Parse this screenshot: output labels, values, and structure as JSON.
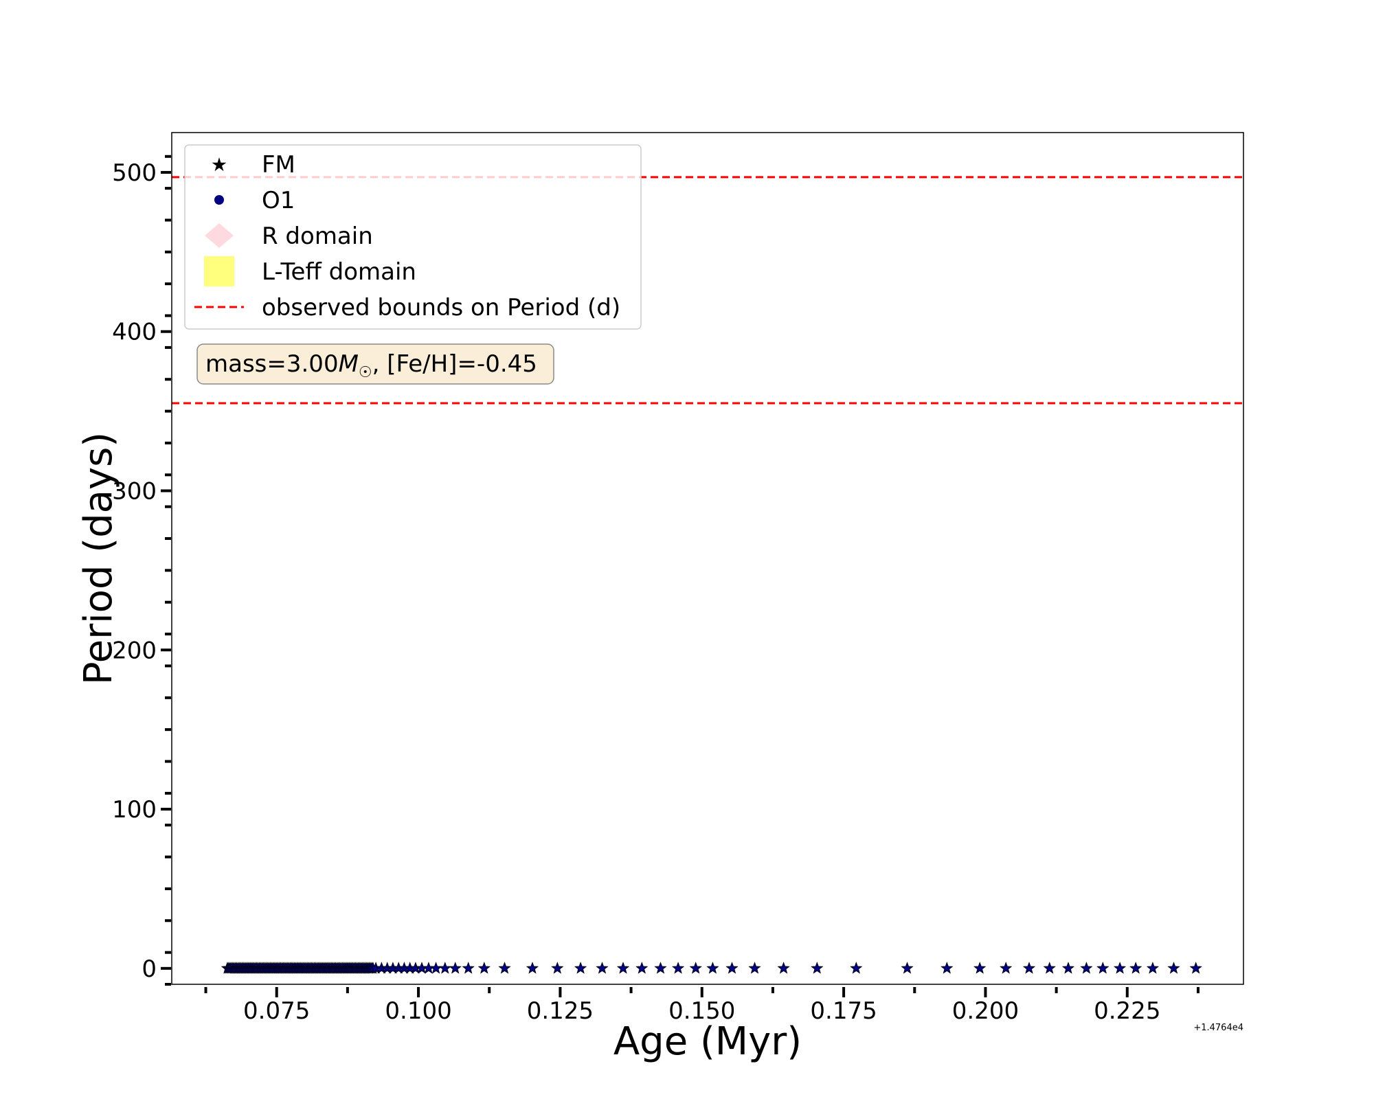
{
  "chart_data": {
    "type": "scatter",
    "xlabel": "Age (Myr)",
    "ylabel": "Period (days)",
    "x_offset_label": "+1.4764e4",
    "xlim": [
      0.0565,
      0.2455
    ],
    "ylim": [
      -10,
      525
    ],
    "x_ticks": [
      0.075,
      0.1,
      0.125,
      0.15,
      0.175,
      0.2,
      0.225
    ],
    "x_tick_labels": [
      "0.075",
      "0.100",
      "0.125",
      "0.150",
      "0.175",
      "0.200",
      "0.225"
    ],
    "y_ticks": [
      0,
      100,
      200,
      300,
      400,
      500
    ],
    "y_tick_labels": [
      "0",
      "100",
      "200",
      "300",
      "400",
      "500"
    ],
    "grid": false,
    "legend": {
      "position": "top-left",
      "entries": [
        {
          "label": "FM",
          "marker": "star",
          "color": "#000000"
        },
        {
          "label": "O1",
          "marker": "circle",
          "color": "#000080"
        },
        {
          "label": "R domain",
          "marker": "diamond",
          "color": "#ffc0cb"
        },
        {
          "label": "L-Teff domain",
          "marker": "square",
          "color": "#ffff66"
        },
        {
          "label": "observed bounds on Period (d)",
          "marker": "dashed-line",
          "color": "#ff0000"
        }
      ]
    },
    "annotation": {
      "prefix": "mass=3.00",
      "symbol": "M",
      "subscript": "☉",
      "suffix": ", [Fe/H]=-0.45"
    },
    "hlines": [
      {
        "name": "upper bound",
        "y": 497,
        "color": "#ff0000",
        "style": "dashed"
      },
      {
        "name": "lower bound",
        "y": 355,
        "color": "#ff0000",
        "style": "dashed"
      }
    ],
    "series": [
      {
        "name": "FM",
        "marker": "star",
        "color": "#000080",
        "x_dense_range": [
          0.0663,
          0.092
        ],
        "x_dense_count": 110,
        "x": [
          0.0925,
          0.0935,
          0.0945,
          0.0955,
          0.0965,
          0.0975,
          0.0985,
          0.0995,
          0.1006,
          0.1018,
          0.1031,
          0.1047,
          0.1065,
          0.1088,
          0.1116,
          0.1152,
          0.1201,
          0.1245,
          0.1286,
          0.1324,
          0.1361,
          0.1394,
          0.1427,
          0.1458,
          0.1489,
          0.1519,
          0.1553,
          0.1593,
          0.1644,
          0.1703,
          0.1772,
          0.1862,
          0.1932,
          0.199,
          0.2036,
          0.2077,
          0.2113,
          0.2146,
          0.2178,
          0.2207,
          0.2237,
          0.2265,
          0.2295,
          0.2332,
          0.2371
        ],
        "y_value": 0
      }
    ]
  }
}
